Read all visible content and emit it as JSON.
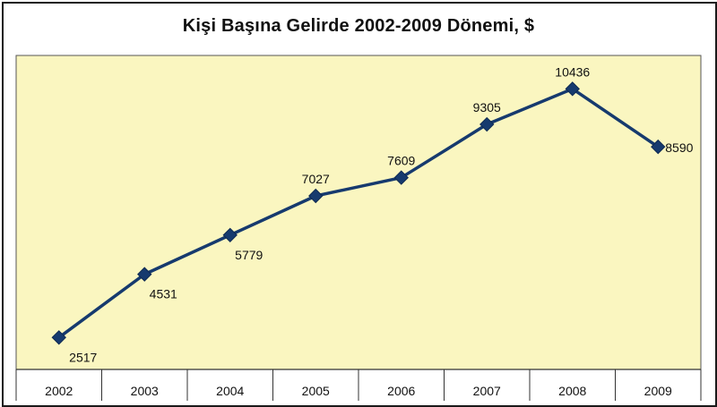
{
  "chart_data": {
    "type": "line",
    "title": "Kişi Başına Gelirde 2002-2009 Dönemi, $",
    "xlabel": "",
    "ylabel": "",
    "categories": [
      "2002",
      "2003",
      "2004",
      "2005",
      "2006",
      "2007",
      "2008",
      "2009"
    ],
    "series": [
      {
        "values": [
          2517,
          4531,
          5779,
          7027,
          7609,
          9305,
          10436,
          8590
        ]
      }
    ],
    "data_labels": [
      "2517",
      "4531",
      "5779",
      "7027",
      "7609",
      "9305",
      "10436",
      "8590"
    ],
    "ylim": [
      1500,
      11500
    ],
    "grid": false,
    "legend": "none",
    "colors": {
      "plot_background": "#faf6c0",
      "line": "#163a6e",
      "marker": "#163a6e",
      "frame": "#1a1a1a"
    }
  }
}
